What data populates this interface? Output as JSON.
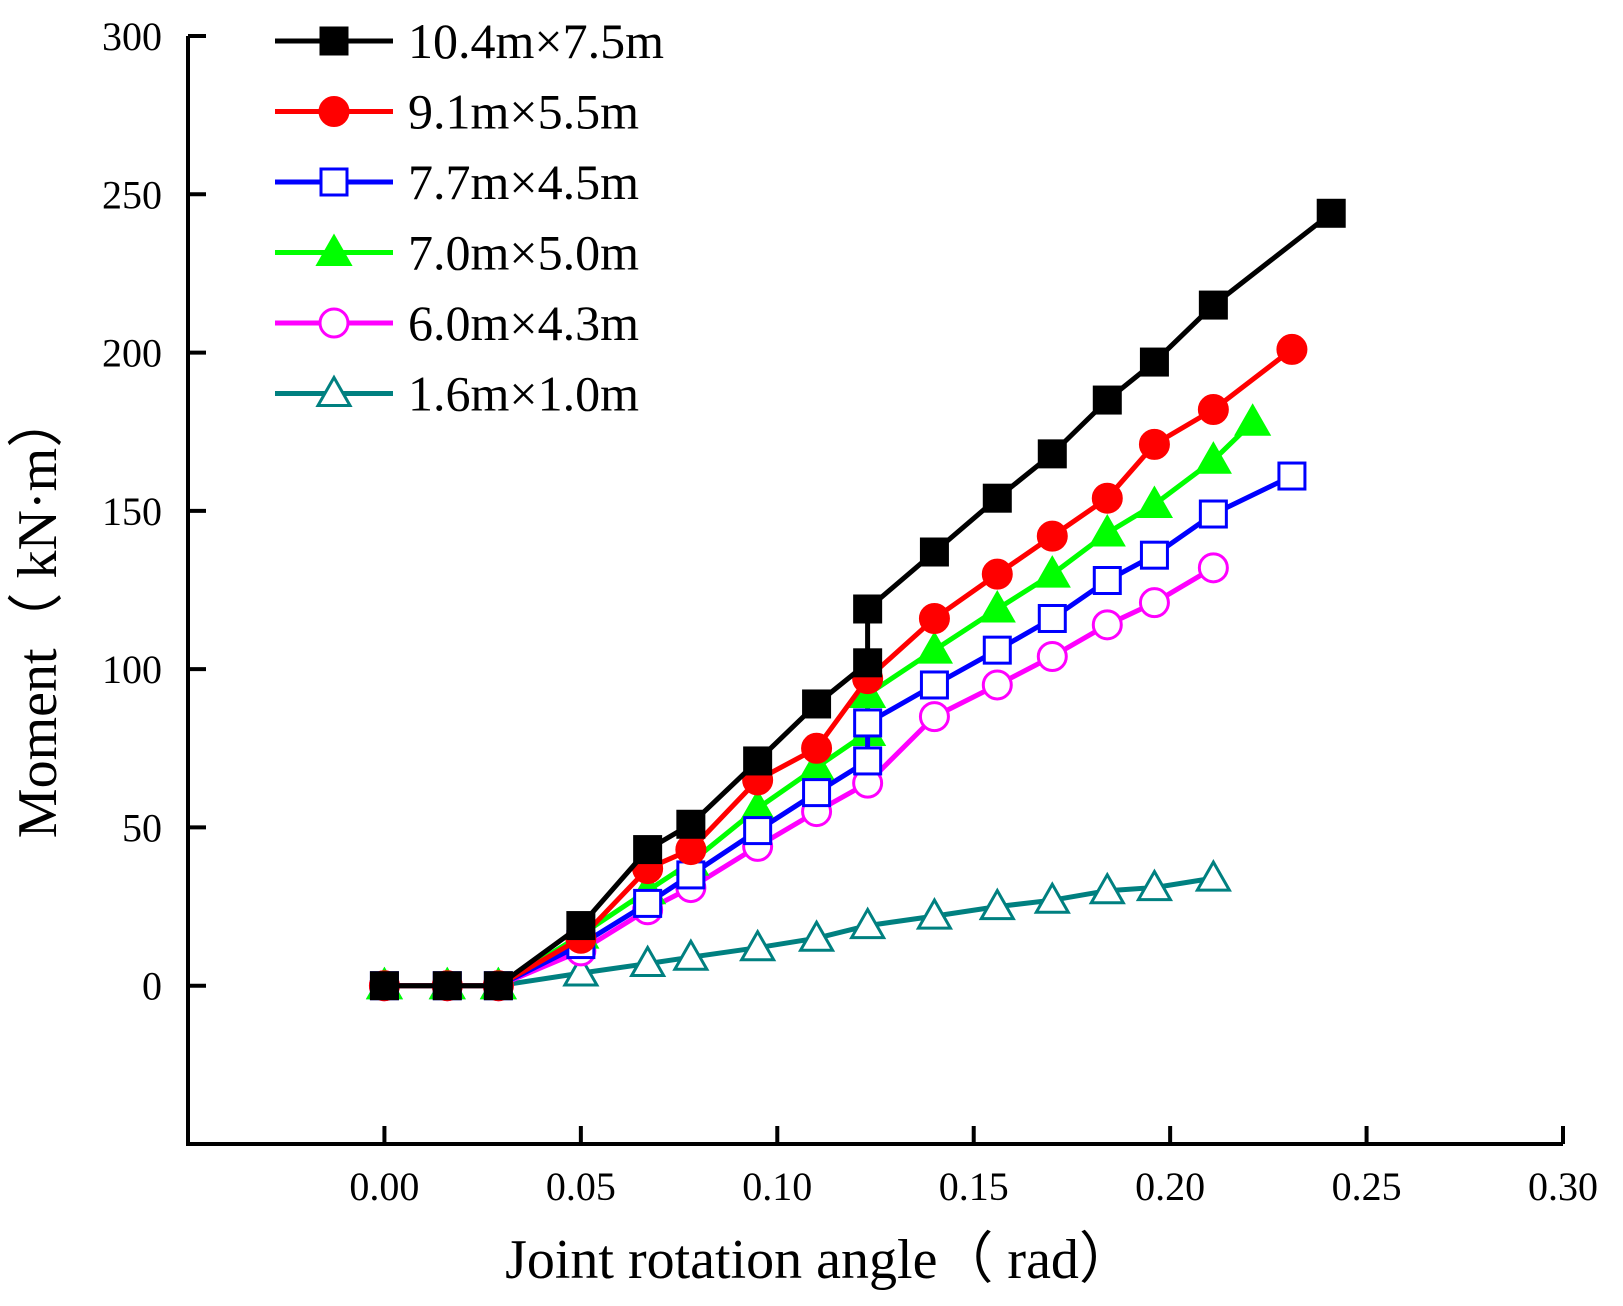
{
  "chart_data": {
    "type": "line",
    "title": "",
    "xlabel": "Joint rotation angle（  rad）",
    "ylabel": "Moment（  kN·m）",
    "xlim": [
      -0.05,
      0.3
    ],
    "ylim": [
      -50,
      300
    ],
    "xticks": [
      "0.00",
      "0.05",
      "0.10",
      "0.15",
      "0.20",
      "0.25",
      "0.30"
    ],
    "yticks": [
      "0",
      "50",
      "100",
      "150",
      "200",
      "250",
      "300"
    ],
    "grid": false,
    "legend_position": "top-left",
    "series": [
      {
        "name": "10.4m×7.5m",
        "color": "#000000",
        "marker": "square-filled",
        "x": [
          0.0,
          0.016,
          0.029,
          0.05,
          0.067,
          0.078,
          0.095,
          0.11,
          0.123,
          0.123,
          0.14,
          0.156,
          0.17,
          0.184,
          0.196,
          0.211,
          0.241
        ],
        "y": [
          0,
          0,
          0,
          19,
          43,
          51,
          71,
          89,
          102,
          119,
          137,
          154,
          168,
          185,
          197,
          215,
          244
        ]
      },
      {
        "name": "9.1m×5.5m",
        "color": "#ff0000",
        "marker": "circle-filled",
        "x": [
          0.0,
          0.016,
          0.029,
          0.05,
          0.067,
          0.078,
          0.095,
          0.11,
          0.123,
          0.14,
          0.156,
          0.17,
          0.184,
          0.196,
          0.211,
          0.231
        ],
        "y": [
          0,
          0,
          0,
          15,
          37,
          43,
          65,
          75,
          97,
          116,
          130,
          142,
          154,
          171,
          182,
          201
        ]
      },
      {
        "name": "7.7m×4.5m",
        "color": "#0000ff",
        "marker": "square-open",
        "x": [
          0.0,
          0.016,
          0.029,
          0.05,
          0.067,
          0.078,
          0.095,
          0.11,
          0.123,
          0.123,
          0.14,
          0.156,
          0.17,
          0.184,
          0.196,
          0.211,
          0.231
        ],
        "y": [
          0,
          0,
          0,
          13,
          26,
          35,
          49,
          61,
          71,
          83,
          95,
          106,
          116,
          128,
          136,
          149,
          161
        ]
      },
      {
        "name": "7.0m×5.0m",
        "color": "#00ff00",
        "marker": "triangle-filled",
        "x": [
          0.0,
          0.016,
          0.029,
          0.05,
          0.067,
          0.078,
          0.095,
          0.11,
          0.123,
          0.123,
          0.14,
          0.156,
          0.17,
          0.184,
          0.196,
          0.211,
          0.221
        ],
        "y": [
          0,
          0,
          0,
          16,
          30,
          39,
          56,
          69,
          80,
          92,
          106,
          119,
          130,
          143,
          152,
          166,
          178
        ]
      },
      {
        "name": "6.0m×4.3m",
        "color": "#ff00ff",
        "marker": "circle-open",
        "x": [
          0.0,
          0.016,
          0.029,
          0.05,
          0.067,
          0.078,
          0.095,
          0.11,
          0.123,
          0.14,
          0.156,
          0.17,
          0.184,
          0.196,
          0.211
        ],
        "y": [
          0,
          0,
          0,
          11,
          24,
          31,
          44,
          55,
          64,
          85,
          95,
          104,
          114,
          121,
          132
        ]
      },
      {
        "name": "1.6m×1.0m",
        "color": "#008080",
        "marker": "triangle-open",
        "x": [
          0.0,
          0.016,
          0.029,
          0.05,
          0.067,
          0.078,
          0.095,
          0.11,
          0.123,
          0.14,
          0.156,
          0.17,
          0.184,
          0.196,
          0.211
        ],
        "y": [
          0,
          0,
          0,
          4,
          7,
          9,
          12,
          15,
          19,
          22,
          25,
          27,
          30,
          31,
          34
        ]
      }
    ]
  }
}
